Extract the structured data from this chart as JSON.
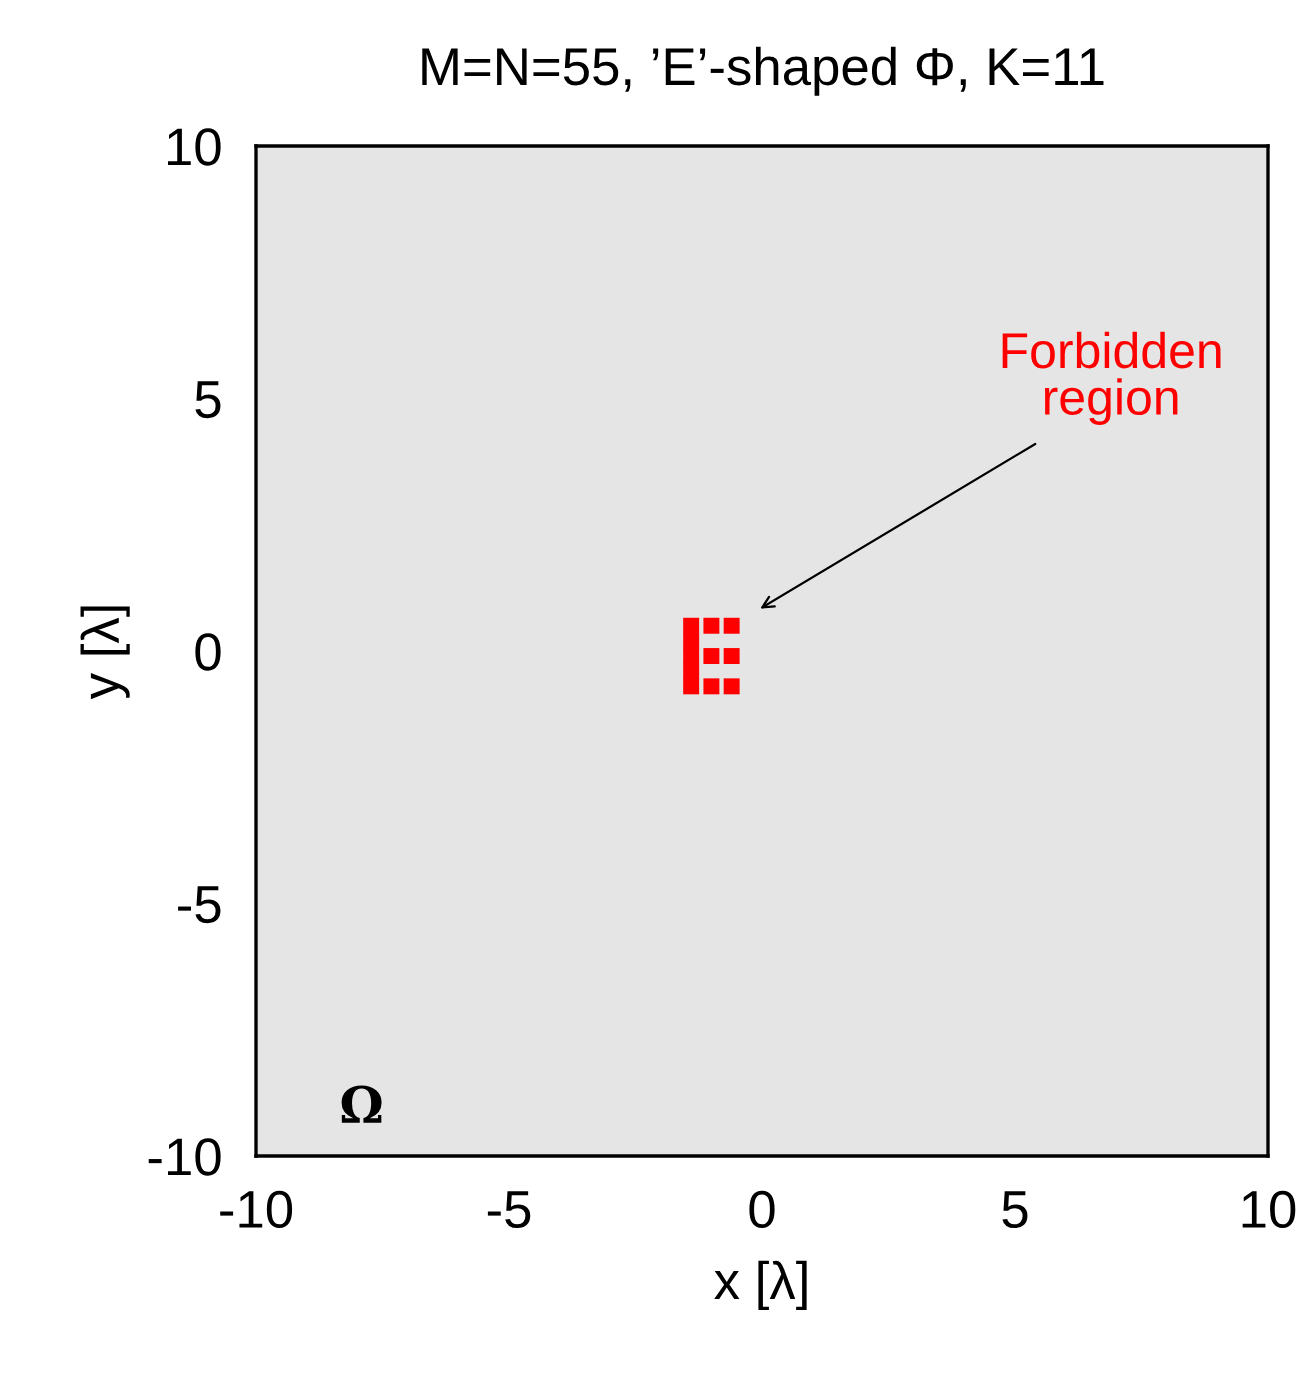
{
  "chart_data": {
    "type": "scatter",
    "title": "M=N=55, ’E’-shaped Φ, K=11",
    "xlabel": "x [λ]",
    "ylabel": "y [λ]",
    "xlim": [
      -10,
      10
    ],
    "ylim": [
      -10,
      10
    ],
    "xticks": [
      -10,
      -5,
      0,
      5,
      10
    ],
    "yticks": [
      -10,
      -5,
      0,
      5,
      10
    ],
    "marker": "square",
    "series": [
      {
        "color": "#ff0000",
        "x": [
          -1.4,
          -1.0,
          -0.6,
          -1.4,
          -1.4,
          -1.0,
          -0.6,
          -1.4,
          -1.4,
          -1.0,
          -0.6
        ],
        "values": [
          0.5,
          0.5,
          0.5,
          0.2,
          -0.1,
          -0.1,
          -0.1,
          -0.4,
          -0.7,
          -0.7,
          -0.7
        ]
      }
    ],
    "bands": [
      {
        "axis": "x",
        "from": -10,
        "to": 10,
        "label": "Ω",
        "color": "#e5e5e5"
      }
    ],
    "annotations": [
      "Forbidden\nregion"
    ]
  }
}
